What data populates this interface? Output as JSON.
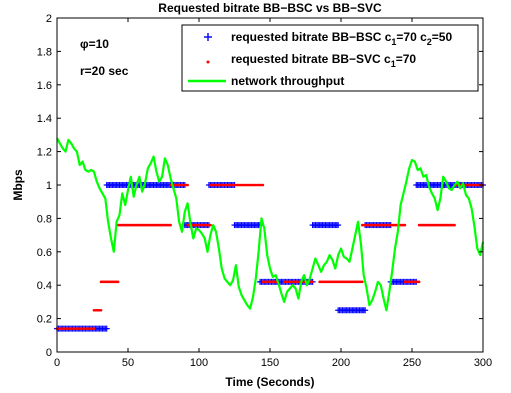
{
  "chart_data": {
    "type": "line",
    "title": "Requested bitrate BB−BSC vs BB−SVC",
    "xlabel": "Time (Seconds)",
    "ylabel": "Mbps",
    "xlim": [
      0,
      300
    ],
    "ylim": [
      0,
      2
    ],
    "xticks": [
      0,
      50,
      100,
      150,
      200,
      250,
      300
    ],
    "xtick_labels": [
      "0",
      "50",
      "100",
      "150",
      "200",
      "250",
      "300"
    ],
    "yticks": [
      0,
      0.2,
      0.4,
      0.6,
      0.8,
      1,
      1.2,
      1.4,
      1.6,
      1.8,
      2
    ],
    "ytick_labels": [
      "0",
      "0.2",
      "0.4",
      "0.6",
      "0.8",
      "1",
      "1.2",
      "1.4",
      "1.6",
      "1.8",
      "2"
    ],
    "grid": false,
    "legend_position": "top-right",
    "annotations": [
      "φ=10",
      "r=20 sec"
    ],
    "series": [
      {
        "name": "requested bitrate BB−BSC",
        "legend_label": "requested bitrate BB−BSC c",
        "legend_sub1": "1",
        "legend_mid": "=70 c",
        "legend_sub2": "2",
        "legend_end": "=50",
        "marker": "+",
        "color": "#0000ff",
        "segments": [
          {
            "x0": 0,
            "x1": 35,
            "y": 0.14
          },
          {
            "x0": 35,
            "x1": 90,
            "y": 1.0
          },
          {
            "x0": 90,
            "x1": 107,
            "y": 0.76
          },
          {
            "x0": 107,
            "x1": 125,
            "y": 1.0
          },
          {
            "x0": 125,
            "x1": 143,
            "y": 0.76
          },
          {
            "x0": 143,
            "x1": 180,
            "y": 0.42
          },
          {
            "x0": 180,
            "x1": 198,
            "y": 0.76
          },
          {
            "x0": 198,
            "x1": 217,
            "y": 0.25
          },
          {
            "x0": 217,
            "x1": 235,
            "y": 0.76
          },
          {
            "x0": 235,
            "x1": 253,
            "y": 0.42
          },
          {
            "x0": 253,
            "x1": 300,
            "y": 1.0
          }
        ]
      },
      {
        "name": "requested bitrate BB−SVC",
        "legend_label": "requested bitrate BB−SVC c",
        "legend_sub1": "1",
        "legend_end": "=70",
        "marker": ".",
        "color": "#ff0000",
        "segments": [
          {
            "x0": 0,
            "x1": 26,
            "y": 0.14
          },
          {
            "x0": 26,
            "x1": 31,
            "y": 0.25
          },
          {
            "x0": 31,
            "x1": 43,
            "y": 0.42
          },
          {
            "x0": 43,
            "x1": 80,
            "y": 0.76
          },
          {
            "x0": 80,
            "x1": 92,
            "y": 1.0
          },
          {
            "x0": 92,
            "x1": 108,
            "y": 0.76
          },
          {
            "x0": 108,
            "x1": 145,
            "y": 1.0
          },
          {
            "x0": 145,
            "x1": 155,
            "y": 0.42
          },
          {
            "x0": 160,
            "x1": 180,
            "y": 0.42
          },
          {
            "x0": 185,
            "x1": 215,
            "y": 0.42
          },
          {
            "x0": 215,
            "x1": 245,
            "y": 0.76
          },
          {
            "x0": 245,
            "x1": 255,
            "y": 0.42
          },
          {
            "x0": 255,
            "x1": 280,
            "y": 0.76
          },
          {
            "x0": 280,
            "x1": 300,
            "y": 1.0
          }
        ]
      },
      {
        "name": "network throughput",
        "color": "#00ff00",
        "x": [
          0,
          2,
          4,
          6,
          8,
          10,
          12,
          14,
          16,
          18,
          20,
          22,
          24,
          26,
          28,
          30,
          32,
          34,
          36,
          38,
          40,
          42,
          44,
          46,
          48,
          50,
          52,
          54,
          56,
          58,
          60,
          62,
          64,
          66,
          68,
          70,
          72,
          74,
          76,
          78,
          80,
          82,
          84,
          86,
          88,
          90,
          92,
          94,
          96,
          98,
          100,
          102,
          104,
          106,
          108,
          110,
          112,
          114,
          116,
          118,
          120,
          122,
          124,
          126,
          128,
          130,
          132,
          134,
          136,
          138,
          140,
          142,
          144,
          146,
          148,
          150,
          152,
          154,
          156,
          158,
          160,
          162,
          164,
          166,
          168,
          170,
          172,
          174,
          176,
          178,
          180,
          182,
          184,
          186,
          188,
          190,
          192,
          194,
          196,
          198,
          200,
          202,
          204,
          206,
          208,
          210,
          212,
          214,
          216,
          218,
          220,
          222,
          224,
          226,
          228,
          230,
          232,
          234,
          236,
          238,
          240,
          242,
          244,
          246,
          248,
          250,
          252,
          254,
          256,
          258,
          260,
          262,
          264,
          266,
          268,
          270,
          272,
          274,
          276,
          278,
          280,
          282,
          284,
          286,
          288,
          290,
          292,
          294,
          296,
          298,
          300
        ],
        "y": [
          1.28,
          1.25,
          1.22,
          1.2,
          1.27,
          1.25,
          1.22,
          1.2,
          1.12,
          1.14,
          1.09,
          1.08,
          1.09,
          1.08,
          1.02,
          0.98,
          0.95,
          0.92,
          0.78,
          0.68,
          0.6,
          0.78,
          0.82,
          0.95,
          0.88,
          0.97,
          1.05,
          0.93,
          1.0,
          1.05,
          0.96,
          1.01,
          1.1,
          1.13,
          1.17,
          1.08,
          1.02,
          1.05,
          1.16,
          1.12,
          1.04,
          0.98,
          0.92,
          0.78,
          0.72,
          0.84,
          0.89,
          0.77,
          0.68,
          0.74,
          0.73,
          0.71,
          0.68,
          0.6,
          0.7,
          0.76,
          0.72,
          0.62,
          0.5,
          0.44,
          0.42,
          0.4,
          0.43,
          0.52,
          0.39,
          0.34,
          0.31,
          0.28,
          0.26,
          0.33,
          0.44,
          0.6,
          0.8,
          0.74,
          0.58,
          0.5,
          0.45,
          0.46,
          0.41,
          0.35,
          0.3,
          0.36,
          0.38,
          0.4,
          0.38,
          0.32,
          0.42,
          0.46,
          0.4,
          0.44,
          0.5,
          0.56,
          0.52,
          0.48,
          0.52,
          0.54,
          0.58,
          0.55,
          0.5,
          0.58,
          0.62,
          0.57,
          0.56,
          0.54,
          0.62,
          0.7,
          0.78,
          0.65,
          0.46,
          0.38,
          0.28,
          0.31,
          0.36,
          0.42,
          0.4,
          0.32,
          0.25,
          0.36,
          0.48,
          0.62,
          0.72,
          0.88,
          0.95,
          1.02,
          1.1,
          1.15,
          1.14,
          1.09,
          1.1,
          1.05,
          1.06,
          0.99,
          0.95,
          0.92,
          0.85,
          0.92,
          1.05,
          1.02,
          0.98,
          0.97,
          1.0,
          1.02,
          0.98,
          1.01,
          0.94,
          0.92,
          0.86,
          0.75,
          0.62,
          0.58,
          0.66
        ]
      }
    ]
  }
}
